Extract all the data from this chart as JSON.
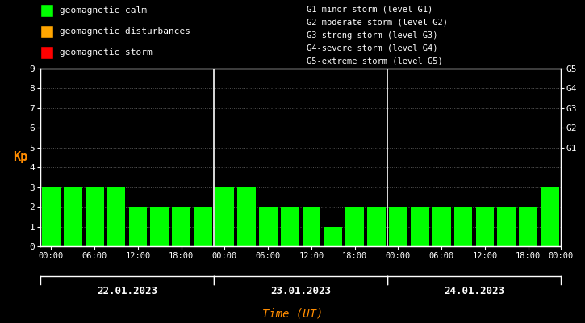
{
  "background_color": "#000000",
  "plot_bg_color": "#000000",
  "bar_values": [
    3,
    3,
    3,
    3,
    2,
    2,
    2,
    2,
    3,
    3,
    2,
    2,
    2,
    1,
    2,
    2,
    2,
    2,
    2,
    2,
    2,
    2,
    2,
    3
  ],
  "bar_color": "#00ff00",
  "ylim": [
    0,
    9
  ],
  "yticks": [
    0,
    1,
    2,
    3,
    4,
    5,
    6,
    7,
    8,
    9
  ],
  "ylabel": "Kp",
  "ylabel_color": "#ff8c00",
  "xlabel": "Time (UT)",
  "xlabel_color": "#ff8c00",
  "tick_color": "#ffffff",
  "axis_color": "#ffffff",
  "dot_color": "#555555",
  "separator_color": "#ffffff",
  "day_labels": [
    "22.01.2023",
    "23.01.2023",
    "24.01.2023"
  ],
  "right_yticks": [
    5,
    6,
    7,
    8,
    9
  ],
  "right_ylabels": [
    "G1",
    "G2",
    "G3",
    "G4",
    "G5"
  ],
  "legend_items": [
    {
      "label": "geomagnetic calm",
      "color": "#00ff00"
    },
    {
      "label": "geomagnetic disturbances",
      "color": "#ffa500"
    },
    {
      "label": "geomagnetic storm",
      "color": "#ff0000"
    }
  ],
  "legend_text_color": "#ffffff",
  "storm_info": [
    "G1-minor storm (level G1)",
    "G2-moderate storm (level G2)",
    "G3-strong storm (level G3)",
    "G4-severe storm (level G4)",
    "G5-extreme storm (level G5)"
  ],
  "storm_info_color": "#ffffff",
  "bar_width": 0.85,
  "n_bars_per_day": 8,
  "n_days": 3,
  "font_family": "monospace",
  "time_labels": [
    "00:00",
    "06:00",
    "12:00",
    "18:00"
  ],
  "grid_yticks": [
    5,
    6,
    7,
    8,
    9
  ]
}
